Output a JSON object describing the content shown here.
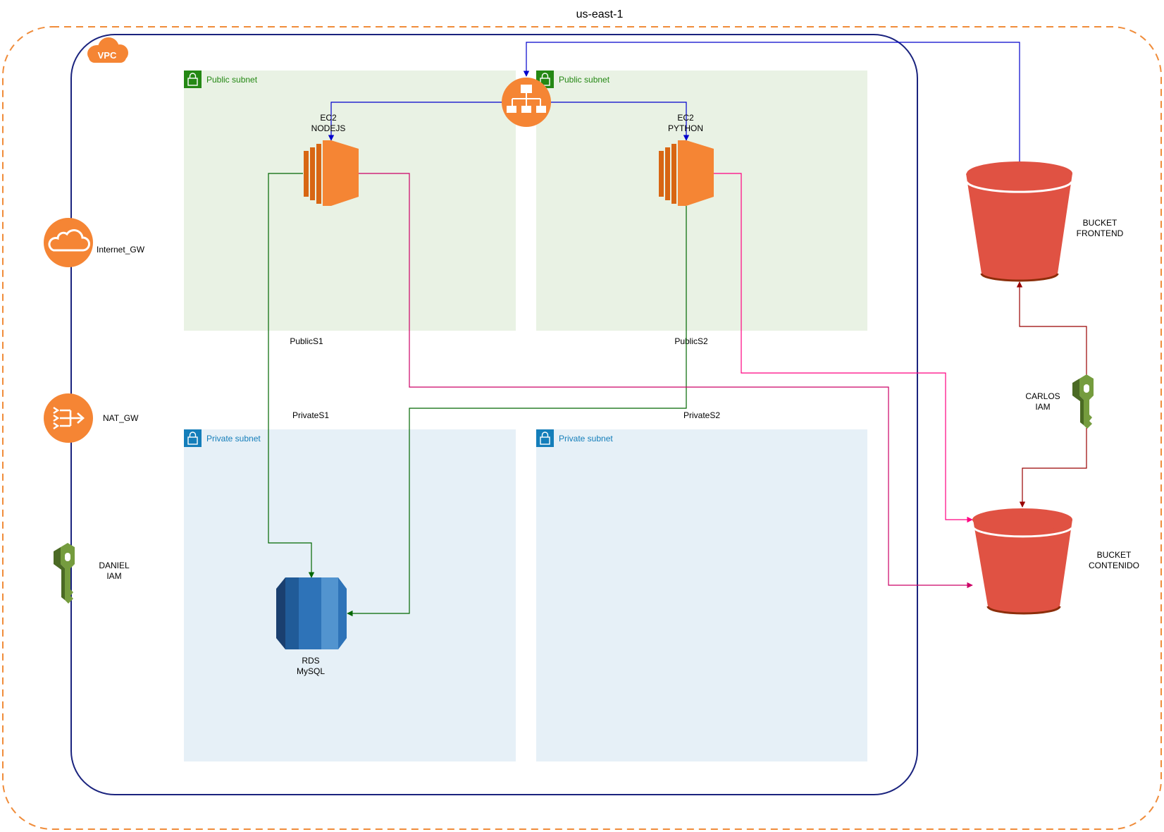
{
  "region": {
    "label": "us-east-1"
  },
  "vpc": {
    "badge": "VPC"
  },
  "subnets": {
    "public1": {
      "type": "Public subnet",
      "name": "PublicS1"
    },
    "public2": {
      "type": "Public subnet",
      "name": "PublicS2"
    },
    "private1": {
      "type": "Private subnet",
      "name": "PrivateS1"
    },
    "private2": {
      "type": "Private subnet",
      "name": "PrivateS2"
    }
  },
  "nodes": {
    "internet_gw": {
      "label": "Internet_GW",
      "icon": "internet-gateway-icon"
    },
    "nat_gw": {
      "label": "NAT_GW",
      "icon": "nat-gateway-icon"
    },
    "daniel_iam": {
      "line1": "DANIEL",
      "line2": "IAM",
      "icon": "iam-key-icon"
    },
    "load_balancer": {
      "icon": "load-balancer-icon"
    },
    "ec2_nodejs": {
      "line1": "EC2",
      "line2": "NODEJS",
      "icon": "ec2-instance-icon"
    },
    "ec2_python": {
      "line1": "EC2",
      "line2": "PYTHON",
      "icon": "ec2-instance-icon"
    },
    "rds": {
      "line1": "RDS",
      "line2": "MySQL",
      "icon": "rds-database-icon"
    },
    "bucket_frontend": {
      "line1": "BUCKET",
      "line2": "FRONTEND",
      "icon": "s3-bucket-icon"
    },
    "bucket_contenido": {
      "line1": "BUCKET",
      "line2": "CONTENIDO",
      "icon": "s3-bucket-icon"
    },
    "carlos_iam": {
      "line1": "CARLOS",
      "line2": "IAM",
      "icon": "iam-key-icon"
    }
  },
  "colors": {
    "region_border": "#f08c3a",
    "vpc_border": "#1a237e",
    "public_fill": "#e9f2e4",
    "public_accent": "#248814",
    "private_fill": "#e6f0f7",
    "private_accent": "#147eba",
    "aws_orange": "#f58534",
    "s3_red": "#e05243",
    "rds_blue": "#2e73b8",
    "iam_green": "#759c3e",
    "edge_blue": "#0000cc",
    "edge_green": "#006600",
    "edge_pink": "#ff0080",
    "edge_crimson": "#cc0066",
    "edge_darkred": "#990000"
  }
}
